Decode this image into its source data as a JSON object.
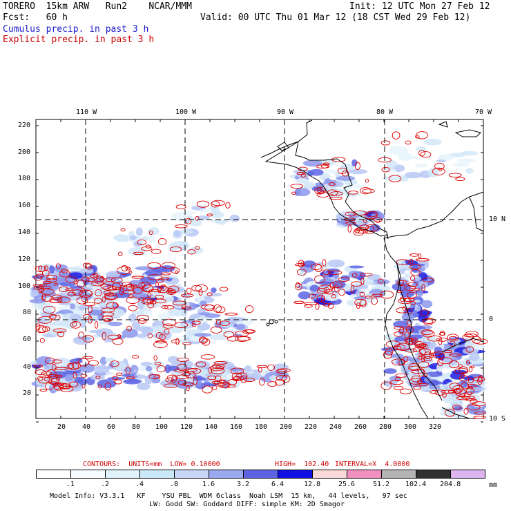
{
  "header": {
    "model": "TORERO  15km ARW   Run2    NCAR/MMM",
    "init": "Init: 12 UTC Mon 27 Feb 12",
    "fcst": "Fcst:   60 h",
    "valid": "Valid: 00 UTC Thu 01 Mar 12 (18 CST Wed 29 Feb 12)",
    "cumulus": "Cumulus precip. in past 3 h",
    "explicit": "Explicit precip. in past 3 h",
    "cumulus_color": "#1a1acc",
    "explicit_color": "#cc0000"
  },
  "top_axis": [
    "110 W",
    "100 W",
    "90 W",
    "80 W",
    "70 W"
  ],
  "right_axis": [
    "10 N",
    "0",
    "10 S"
  ],
  "y_ticks": [
    "220",
    "200",
    "180",
    "160",
    "140",
    "120",
    "100",
    "80",
    "60",
    "40",
    "20"
  ],
  "x_ticks": [
    "20",
    "40",
    "60",
    "80",
    "100",
    "120",
    "140",
    "160",
    "180",
    "200",
    "220",
    "240",
    "260",
    "280",
    "300",
    "320"
  ],
  "contour_info": {
    "contours": "CONTOURS:  UNITS=mm  LOW= 0.10000",
    "high": "HIGH=  102.40",
    "interval": "INTERVAL=X  4.0000"
  },
  "colorbar": {
    "levels": [
      ".1",
      ".2",
      ".4",
      ".8",
      "1.6",
      "3.2",
      "6.4",
      "12.8",
      "25.6",
      "51.2",
      "102.4",
      "204.8"
    ],
    "colors": [
      "#ffffff",
      "#f5fbff",
      "#e0f2fc",
      "#c9e8f8",
      "#c8d6f8",
      "#9aa8f0",
      "#5c64e4",
      "#1010e0",
      "#f8d8d8",
      "#f090c0",
      "#b4b4b4",
      "#303030",
      "#dcb4f0"
    ],
    "unit": "mm"
  },
  "footer": {
    "line1": "Model Info: V3.3.1   KF    YSU PBL  WDM 6class  Noah LSM  15 km,   44 levels,   97 sec",
    "line2": "LW: Godd SW: Goddard DIFF: simple KM: 2D Smagor"
  }
}
